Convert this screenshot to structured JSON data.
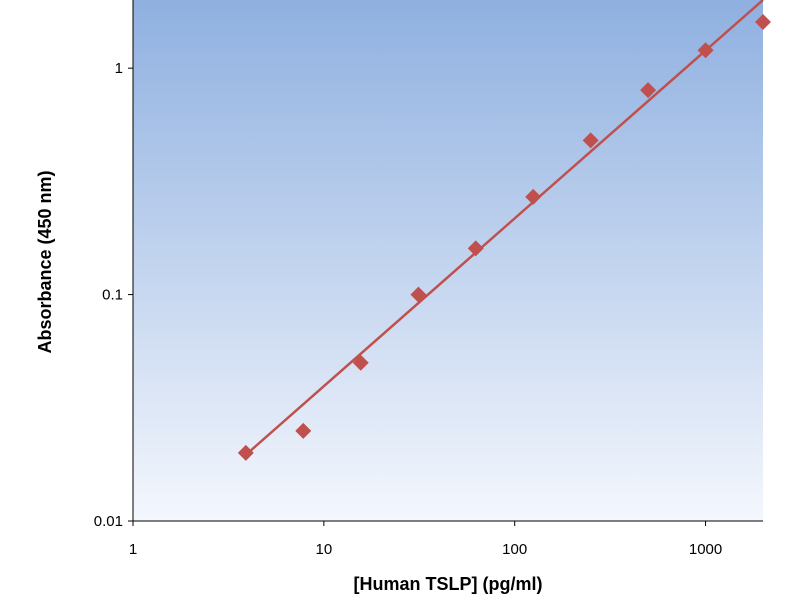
{
  "chart_data": {
    "type": "scatter",
    "xlabel": "[Human TSLP] (pg/ml)",
    "ylabel": "Absorbance (450 nm)",
    "x_scale": "log",
    "y_scale": "log",
    "xlim": [
      1,
      2000
    ],
    "ylim": [
      0.01,
      2
    ],
    "x_ticks": [
      "1",
      "10",
      "100",
      "1000"
    ],
    "y_ticks": [
      "0.01",
      "0.1",
      "1"
    ],
    "grid": false,
    "legend": "none",
    "background_gradient": [
      "#8fb0e0",
      "#f4f7fd"
    ],
    "series": [
      {
        "marker": "diamond",
        "color": "#c0504d",
        "x": [
          3.9,
          7.8,
          15.6,
          31.3,
          62.5,
          125,
          250,
          500,
          1000,
          2000
        ],
        "y": [
          0.02,
          0.025,
          0.05,
          0.1,
          0.16,
          0.27,
          0.48,
          0.8,
          1.2,
          1.6
        ]
      }
    ],
    "fit_line": {
      "color": "#c0504d",
      "x": [
        3.9,
        2000
      ],
      "y": [
        0.0196,
        2.0
      ]
    }
  }
}
